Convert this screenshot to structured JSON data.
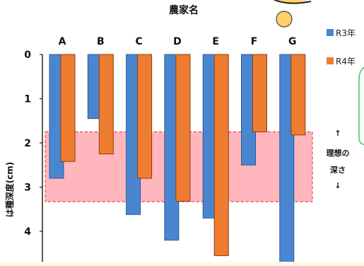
{
  "chart_data": {
    "type": "bar",
    "title": "農家名",
    "ylabel": "は種深度(cm)",
    "categories": [
      "A",
      "B",
      "C",
      "D",
      "E",
      "F",
      "G"
    ],
    "ylim": [
      0,
      4.6
    ],
    "yticks": [
      0,
      1,
      2,
      3,
      4
    ],
    "y_inverted": true,
    "x_axis_position": "top",
    "series": [
      {
        "name": "R3年",
        "color": "#4a86d0",
        "values": [
          2.8,
          1.45,
          3.62,
          4.2,
          3.7,
          2.5,
          4.7
        ]
      },
      {
        "name": "R4年",
        "color": "#ef7d31",
        "values": [
          2.42,
          2.25,
          2.8,
          3.32,
          4.55,
          1.75,
          1.82
        ]
      }
    ],
    "legend": {
      "position": "top-right"
    },
    "band": {
      "y_range": [
        1.75,
        3.33
      ],
      "color": "#ff6e7a",
      "label_lines": [
        "↑",
        "理想の",
        "深さ",
        "↓"
      ]
    }
  },
  "colors": {
    "r3": "#4a86d0",
    "r4": "#ef7d31",
    "callout_yellow": "#ffd166",
    "callout_green": "#3ac46a"
  }
}
